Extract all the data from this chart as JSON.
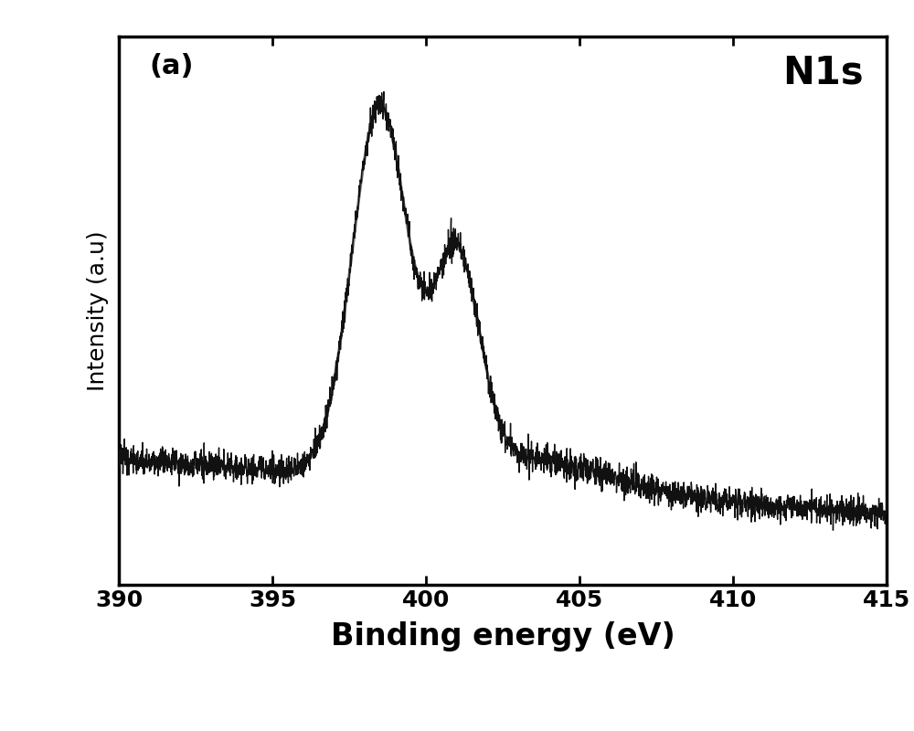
{
  "xlabel": "Binding energy (eV)",
  "ylabel": "Intensity (a.u)",
  "label_a": "(a)",
  "label_n1s": "N1s",
  "xlim": [
    390,
    415
  ],
  "xticks": [
    390,
    395,
    400,
    405,
    410,
    415
  ],
  "xlabel_fontsize": 24,
  "ylabel_fontsize": 18,
  "tick_fontsize": 18,
  "background_color": "#ffffff",
  "smooth_color": "#777777",
  "noisy_color": "#111111",
  "smooth_linewidth": 2.2,
  "noisy_linewidth": 1.0
}
